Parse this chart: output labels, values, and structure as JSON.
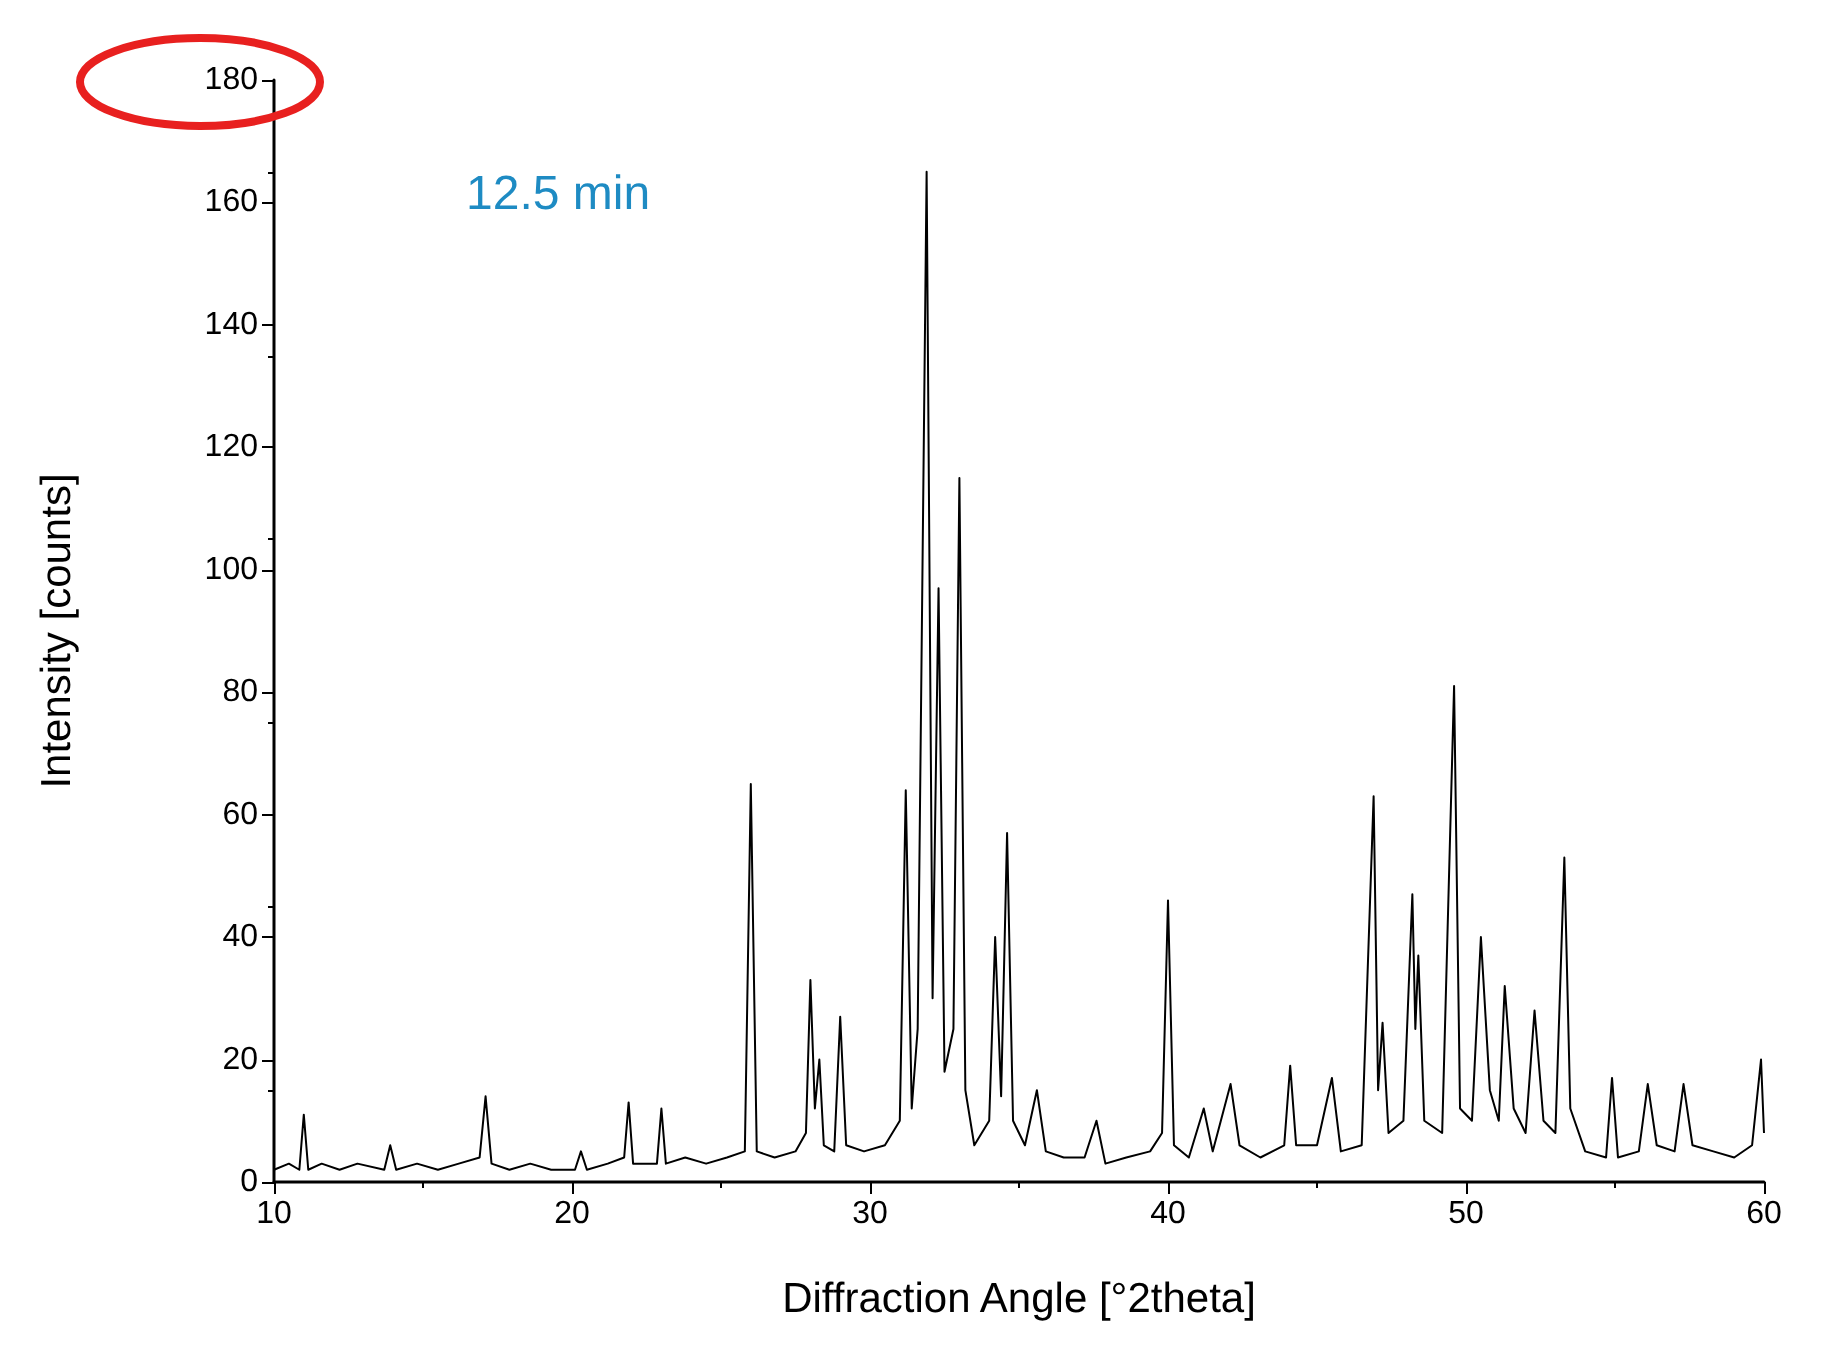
{
  "chart_data": {
    "type": "line",
    "xlabel": "Diffraction Angle [°2theta]",
    "ylabel": "Intensity [counts]",
    "annotations": [
      "12.5 min"
    ],
    "xlim": [
      10,
      60
    ],
    "xticks": [
      10,
      20,
      30,
      40,
      50,
      60
    ],
    "ylim": [
      0,
      180
    ],
    "yticks": [
      0,
      20,
      40,
      60,
      80,
      100,
      120,
      140,
      160,
      180
    ],
    "grid": false,
    "marker": "none",
    "line_style": "solid",
    "series": [
      {
        "color": "#000000",
        "x": [
          10,
          10.5,
          10.85,
          11.0,
          11.15,
          11.6,
          12.2,
          12.8,
          13.7,
          13.9,
          14.1,
          14.8,
          15.5,
          16.2,
          16.9,
          17.1,
          17.3,
          17.9,
          18.6,
          19.3,
          20.1,
          20.3,
          20.5,
          21.2,
          21.75,
          21.9,
          22.05,
          22.5,
          22.85,
          23.0,
          23.15,
          23.8,
          24.5,
          25.2,
          25.8,
          26.0,
          26.2,
          26.8,
          27.5,
          27.85,
          28.0,
          28.15,
          28.3,
          28.45,
          28.8,
          29.0,
          29.2,
          29.8,
          30.5,
          31.0,
          31.2,
          31.4,
          31.6,
          31.9,
          32.1,
          32.3,
          32.5,
          32.8,
          33.0,
          33.2,
          33.5,
          34.0,
          34.2,
          34.4,
          34.6,
          34.8,
          35.2,
          35.6,
          35.9,
          36.5,
          37.2,
          37.6,
          37.9,
          38.6,
          39.4,
          39.8,
          40.0,
          40.2,
          40.7,
          41.2,
          41.5,
          42.1,
          42.4,
          43.1,
          43.9,
          44.1,
          44.3,
          45.0,
          45.5,
          45.8,
          46.5,
          46.9,
          47.05,
          47.2,
          47.4,
          47.9,
          48.2,
          48.3,
          48.4,
          48.6,
          49.2,
          49.6,
          49.8,
          50.2,
          50.5,
          50.8,
          51.1,
          51.3,
          51.6,
          52.0,
          52.3,
          52.6,
          53.0,
          53.3,
          53.5,
          54.0,
          54.7,
          54.9,
          55.1,
          55.8,
          56.1,
          56.4,
          57.0,
          57.3,
          57.6,
          58.3,
          59.0,
          59.6,
          59.9,
          60
        ],
        "values": [
          2,
          3,
          2,
          11,
          2,
          3,
          2,
          3,
          2,
          6,
          2,
          3,
          2,
          3,
          4,
          14,
          3,
          2,
          3,
          2,
          2,
          5,
          2,
          3,
          4,
          13,
          3,
          3,
          3,
          12,
          3,
          4,
          3,
          4,
          5,
          65,
          5,
          4,
          5,
          8,
          33,
          12,
          20,
          6,
          5,
          27,
          6,
          5,
          6,
          10,
          64,
          12,
          25,
          165,
          30,
          97,
          18,
          25,
          115,
          15,
          6,
          10,
          40,
          14,
          57,
          10,
          6,
          15,
          5,
          4,
          4,
          10,
          3,
          4,
          5,
          8,
          46,
          6,
          4,
          12,
          5,
          16,
          6,
          4,
          6,
          19,
          6,
          6,
          17,
          5,
          6,
          63,
          15,
          26,
          8,
          10,
          47,
          25,
          37,
          10,
          8,
          81,
          12,
          10,
          40,
          15,
          10,
          32,
          12,
          8,
          28,
          10,
          8,
          53,
          12,
          5,
          4,
          17,
          4,
          5,
          16,
          6,
          5,
          16,
          6,
          5,
          4,
          6,
          20,
          8
        ]
      }
    ]
  }
}
